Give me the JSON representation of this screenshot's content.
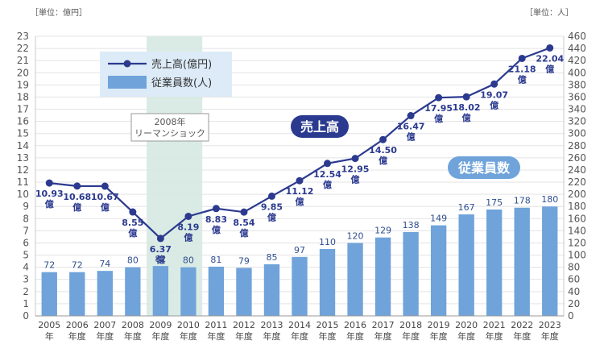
{
  "chart_data": {
    "type": "bar+line",
    "unit_left": "［単位：億円］",
    "unit_right": "［単位：人］",
    "x_labels": [
      [
        "2005",
        "年"
      ],
      [
        "2006",
        "年度"
      ],
      [
        "2007",
        "年度"
      ],
      [
        "2008",
        "年度"
      ],
      [
        "2009",
        "年度"
      ],
      [
        "2010",
        "年度"
      ],
      [
        "2011",
        "年度"
      ],
      [
        "2012",
        "年度"
      ],
      [
        "2013",
        "年度"
      ],
      [
        "2014",
        "年度"
      ],
      [
        "2015",
        "年度"
      ],
      [
        "2016",
        "年度"
      ],
      [
        "2017",
        "年度"
      ],
      [
        "2018",
        "年度"
      ],
      [
        "2019",
        "年度"
      ],
      [
        "2020",
        "年度"
      ],
      [
        "2021",
        "年度"
      ],
      [
        "2022",
        "年度"
      ],
      [
        "2023",
        "年度"
      ]
    ],
    "y_left": {
      "min": 0,
      "max": 23,
      "step": 1
    },
    "y_right": {
      "min": 0,
      "max": 460,
      "step": 20
    },
    "series": [
      {
        "name": "売上高(億円)",
        "axis": "left",
        "kind": "line",
        "color": "#2b3a8f",
        "values": [
          10.93,
          10.68,
          10.67,
          8.55,
          6.37,
          8.19,
          8.83,
          8.54,
          9.85,
          11.12,
          12.54,
          12.95,
          14.5,
          16.47,
          17.95,
          18.02,
          19.07,
          21.18,
          22.04
        ],
        "labels": [
          "10.93",
          "10.68",
          "10.67",
          "8.55",
          "6.37",
          "8.19",
          "8.83",
          "8.54",
          "9.85",
          "11.12",
          "12.54",
          "12.95",
          "14.50",
          "16.47",
          "17.95",
          "18.02",
          "19.07",
          "21.18",
          "22.04"
        ],
        "label_suffix": "億"
      },
      {
        "name": "従業員数(人)",
        "axis": "right",
        "kind": "bar",
        "color": "#6fa3da",
        "values": [
          72,
          72,
          74,
          80,
          82,
          80,
          81,
          79,
          85,
          97,
          110,
          120,
          129,
          138,
          149,
          167,
          175,
          178,
          180
        ]
      }
    ],
    "highlight": {
      "label_line1": "2008年",
      "label_line2": "リーマンショック"
    },
    "badges": {
      "sales": "売上高",
      "employees": "従業員数"
    },
    "colors": {
      "shade": "#d6e9e2",
      "legend_bg": "#dcebf7",
      "badge_sales": "#2b3a8f",
      "badge_emp": "#6fa3da"
    }
  }
}
